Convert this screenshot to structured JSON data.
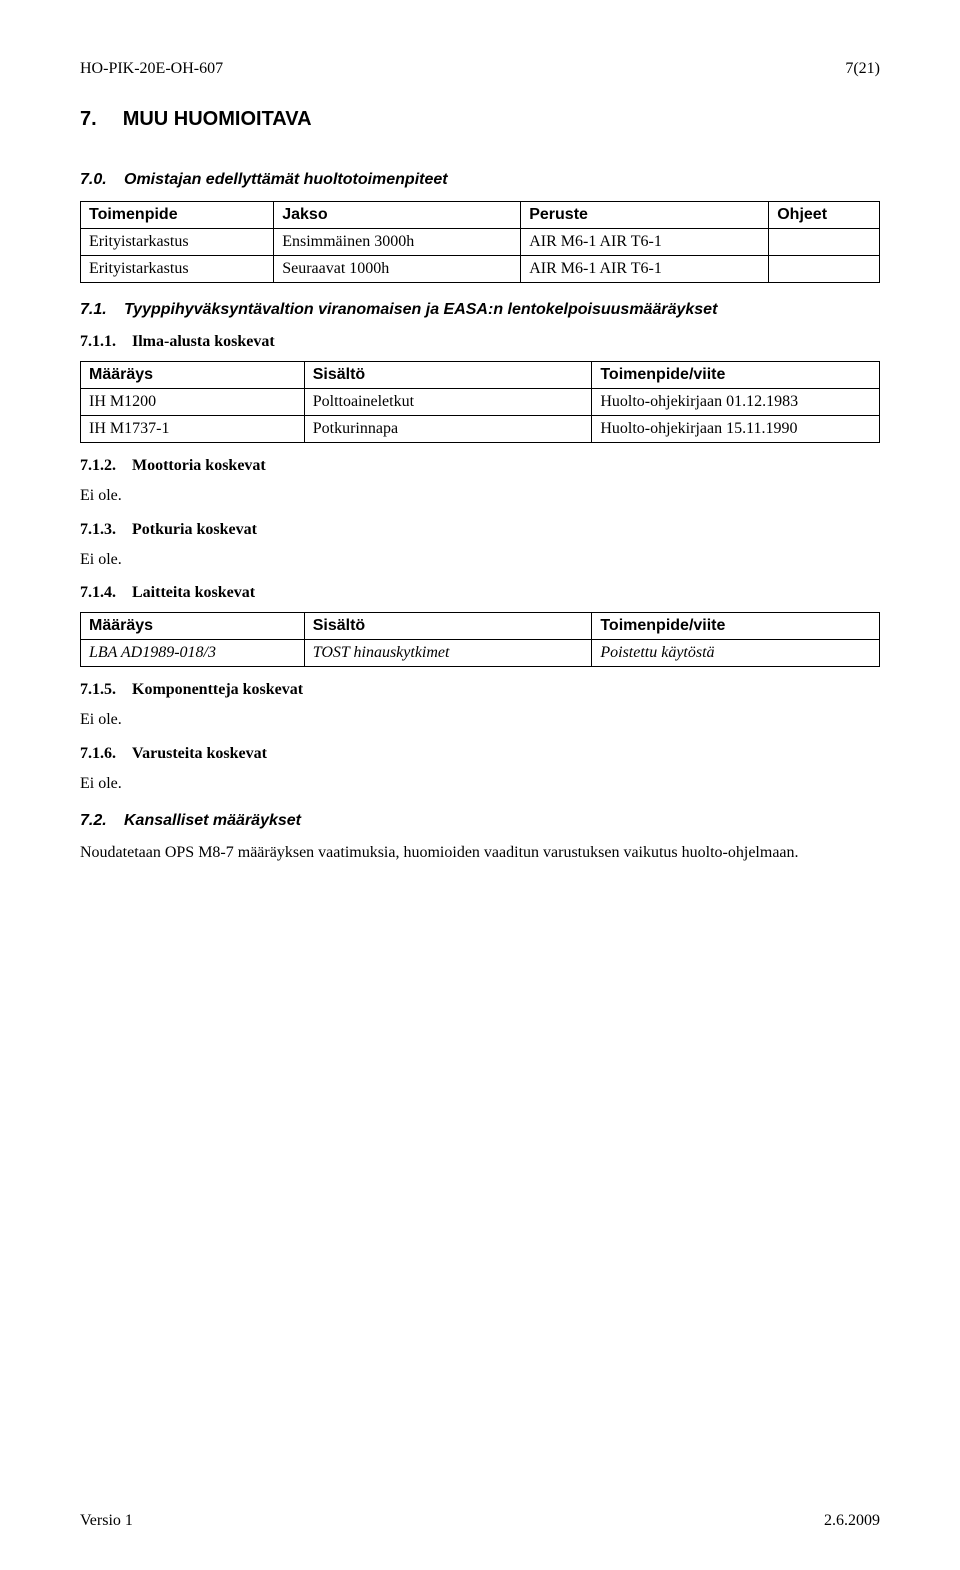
{
  "header": {
    "doc_id": "HO-PIK-20E-OH-607",
    "page_of": "7(21)"
  },
  "section7": {
    "num": "7.",
    "title": "MUU HUOMIOITAVA"
  },
  "s70": {
    "num": "7.0.",
    "title": "Omistajan edellyttämät huoltotoimenpiteet"
  },
  "table70": {
    "headers": {
      "c0": "Toimenpide",
      "c1": "Jakso",
      "c2": "Peruste",
      "c3": "Ohjeet"
    },
    "rows": [
      {
        "c0": "Erityistarkastus",
        "c1": "Ensimmäinen 3000h",
        "c2": "AIR M6-1 AIR T6-1",
        "c3": ""
      },
      {
        "c0": "Erityistarkastus",
        "c1": "Seuraavat 1000h",
        "c2": "AIR M6-1 AIR T6-1",
        "c3": ""
      }
    ]
  },
  "s71": {
    "num": "7.1.",
    "title": "Tyyppihyväksyntävaltion viranomaisen ja EASA:n lentokelpoisuusmääräykset"
  },
  "s711": {
    "num": "7.1.1.",
    "title": "Ilma-alusta koskevat"
  },
  "table711": {
    "headers": {
      "c0": "Määräys",
      "c1": "Sisältö",
      "c2": "Toimenpide/viite"
    },
    "rows": [
      {
        "c0": "IH M1200",
        "c1": "Polttoaineletkut",
        "c2": "Huolto-ohjekirjaan 01.12.1983"
      },
      {
        "c0": "IH M1737-1",
        "c1": "Potkurinnapa",
        "c2": "Huolto-ohjekirjaan 15.11.1990"
      }
    ]
  },
  "s712": {
    "num": "7.1.2.",
    "title": "Moottoria koskevat",
    "body": "Ei ole."
  },
  "s713": {
    "num": "7.1.3.",
    "title": "Potkuria koskevat",
    "body": "Ei ole."
  },
  "s714": {
    "num": "7.1.4.",
    "title": "Laitteita koskevat"
  },
  "table714": {
    "headers": {
      "c0": "Määräys",
      "c1": "Sisältö",
      "c2": "Toimenpide/viite"
    },
    "rows": [
      {
        "c0": "LBA AD1989-018/3",
        "c1": "TOST hinauskytkimet",
        "c2": "Poistettu käytöstä"
      }
    ]
  },
  "s715": {
    "num": "7.1.5.",
    "title": "Komponentteja koskevat",
    "body": "Ei ole."
  },
  "s716": {
    "num": "7.1.6.",
    "title": "Varusteita koskevat",
    "body": "Ei ole."
  },
  "s72": {
    "num": "7.2.",
    "title": "Kansalliset määräykset",
    "body": "Noudatetaan OPS M8-7 määräyksen vaatimuksia, huomioiden vaaditun varustuksen vaikutus huolto-ohjelmaan."
  },
  "footer": {
    "version": "Versio 1",
    "date": "2.6.2009"
  }
}
